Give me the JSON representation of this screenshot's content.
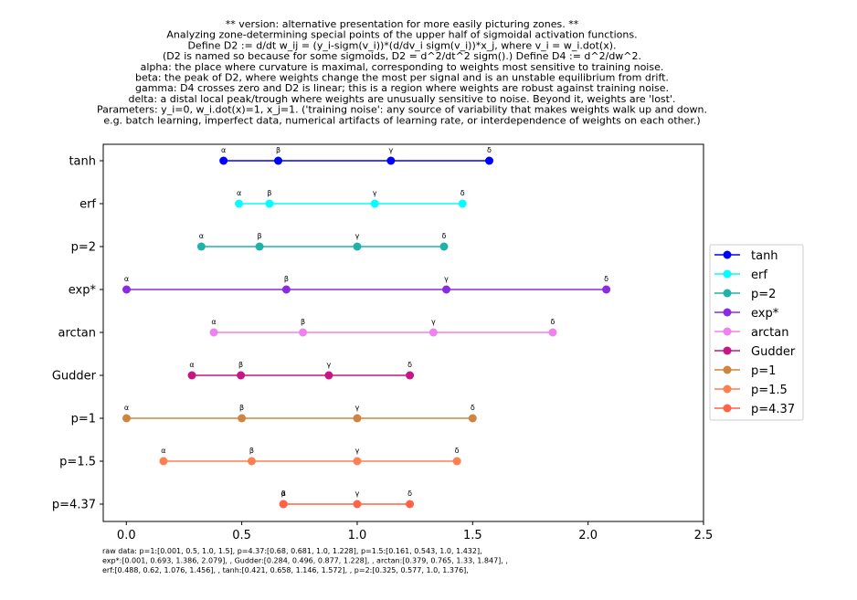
{
  "chart_data": {
    "type": "line",
    "title_lines": [
      "** version: alternative presentation for more easily picturing zones. **",
      "Analyzing zone-determining special points of the upper half of sigmoidal activation functions.",
      "Define D2 := d/dt w_ij = (y_i-sigm(v_i))*(d/dv_i sigm(v_i))*x_j, where v_i = w_i.dot(x).",
      "(D2 is named so because for some sigmoids, D2 = d^2/dt^2 sigm().) Define D4 := d^2/dw^2.",
      "alpha: the place where curvature is maximal, corresponding to weights most sensitive to training noise.",
      "beta: the peak of D2, where weights change the most per signal and is an unstable equilibrium from drift.",
      "gamma: D4 crosses zero and D2 is linear; this is a region where weights are robust against training noise.",
      "delta: a distal local peak/trough where weights are unusually sensitive to noise. Beyond it, weights are 'lost'.",
      "Parameters: y_i=0, w_i.dot(x)=1, x_j=1. ('training noise': any source of variability that makes weights walk up and down.",
      "e.g. batch learning, imperfect data, numerical artifacts of learning rate, or interdependence of weights on each other.)"
    ],
    "point_labels": [
      "α",
      "β",
      "γ",
      "δ"
    ],
    "xlim": [
      -0.1,
      2.5
    ],
    "xticks": [
      "0.0",
      "0.5",
      "1.0",
      "1.5",
      "2.0",
      "2.5"
    ],
    "grid": false,
    "legend_placement": "center-right",
    "series": [
      {
        "name": "tanh",
        "color": "#0000ff",
        "values": [
          0.421,
          0.658,
          1.146,
          1.572
        ]
      },
      {
        "name": "erf",
        "color": "#00ffff",
        "values": [
          0.488,
          0.62,
          1.076,
          1.456
        ]
      },
      {
        "name": "p=2",
        "color": "#20b2aa",
        "values": [
          0.325,
          0.577,
          1.0,
          1.376
        ]
      },
      {
        "name": "exp*",
        "color": "#8a2be2",
        "values": [
          0.001,
          0.693,
          1.386,
          2.079
        ]
      },
      {
        "name": "arctan",
        "color": "#ee82ee",
        "values": [
          0.379,
          0.765,
          1.33,
          1.847
        ]
      },
      {
        "name": "Gudder",
        "color": "#c71585",
        "values": [
          0.284,
          0.496,
          0.877,
          1.228
        ]
      },
      {
        "name": "p=1",
        "color": "#cd853f",
        "values": [
          0.001,
          0.5,
          1.0,
          1.5
        ]
      },
      {
        "name": "p=1.5",
        "color": "#ff7f50",
        "values": [
          0.161,
          0.543,
          1.0,
          1.432
        ]
      },
      {
        "name": "p=4.37",
        "color": "#ff6347",
        "values": [
          0.68,
          0.681,
          1.0,
          1.228
        ]
      }
    ],
    "raw_data_lines": [
      "raw data: p=1:[0.001, 0.5, 1.0, 1.5], p=4.37:[0.68, 0.681, 1.0, 1.228], p=1.5:[0.161, 0.543, 1.0, 1.432],",
      "exp*:[0.001, 0.693, 1.386, 2.079],  , Gudder:[0.284, 0.496, 0.877, 1.228],  , arctan:[0.379, 0.765, 1.33, 1.847],  ,",
      "erf:[0.488, 0.62, 1.076, 1.456],  , tanh:[0.421, 0.658, 1.146, 1.572],  , p=2:[0.325, 0.577, 1.0, 1.376],"
    ]
  }
}
